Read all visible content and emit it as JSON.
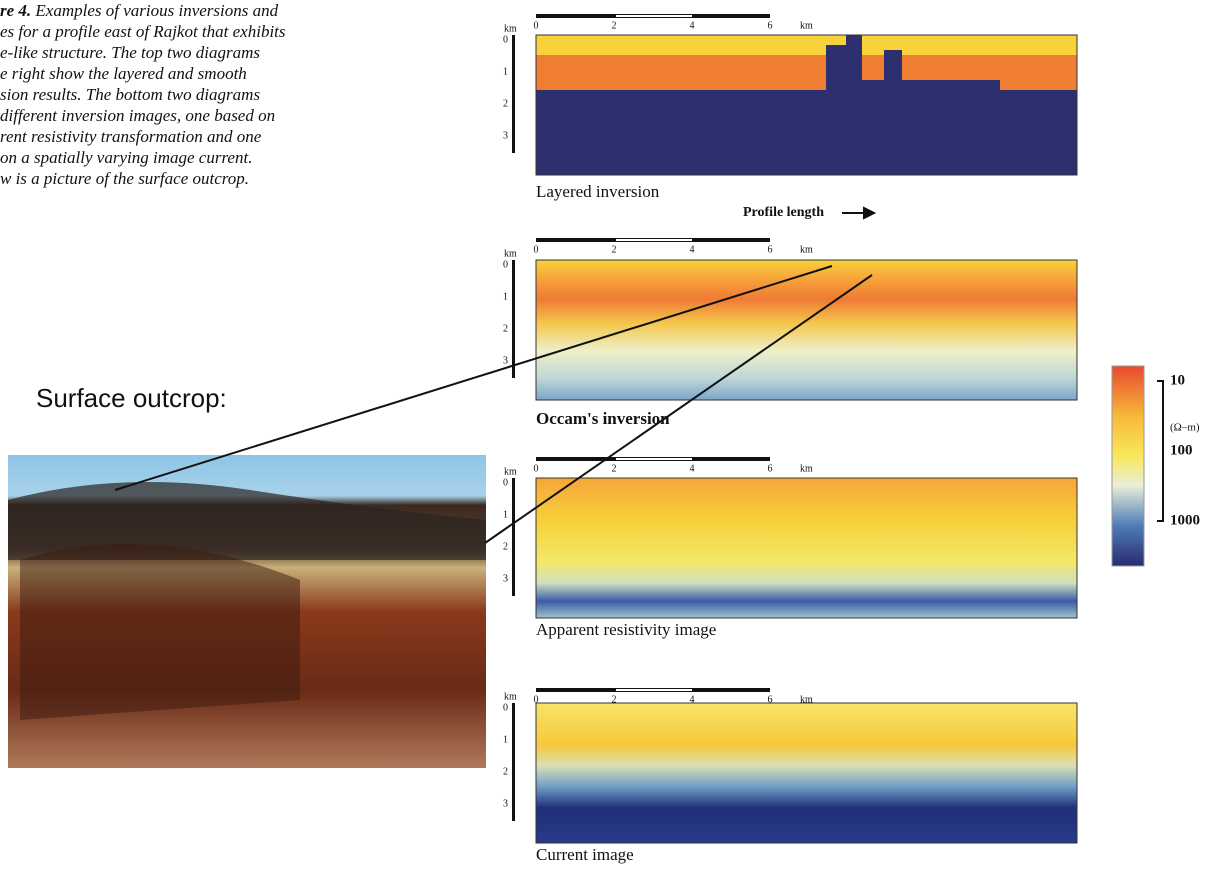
{
  "caption": {
    "label": "re 4.",
    "lines": [
      " Examples of various inversions and",
      "es for a profile east of Rajkot that exhibits",
      "e-like structure. The top two diagrams",
      "e right show the layered and smooth",
      "sion results. The bottom two diagrams",
      "different inversion images, one based on",
      "rent resistivity transformation and one",
      "on a spatially varying image current.",
      "w is a picture of the surface outcrop."
    ]
  },
  "outcrop_title": "Surface outcrop:",
  "scale_bar": {
    "ticks": [
      "0",
      "2",
      "4",
      "6"
    ],
    "unit": "km"
  },
  "depth_axis": {
    "unit": "km",
    "ticks": [
      "0",
      "1",
      "2",
      "3"
    ]
  },
  "profile_length": "Profile length",
  "panels": [
    {
      "label": "Layered inversion"
    },
    {
      "label": "Occam's inversion"
    },
    {
      "label": "Apparent resistivity image"
    },
    {
      "label": "Current image"
    }
  ],
  "colorbar": {
    "ticks": [
      "10",
      "100",
      "1000"
    ],
    "unit": "(Ω–m)"
  }
}
